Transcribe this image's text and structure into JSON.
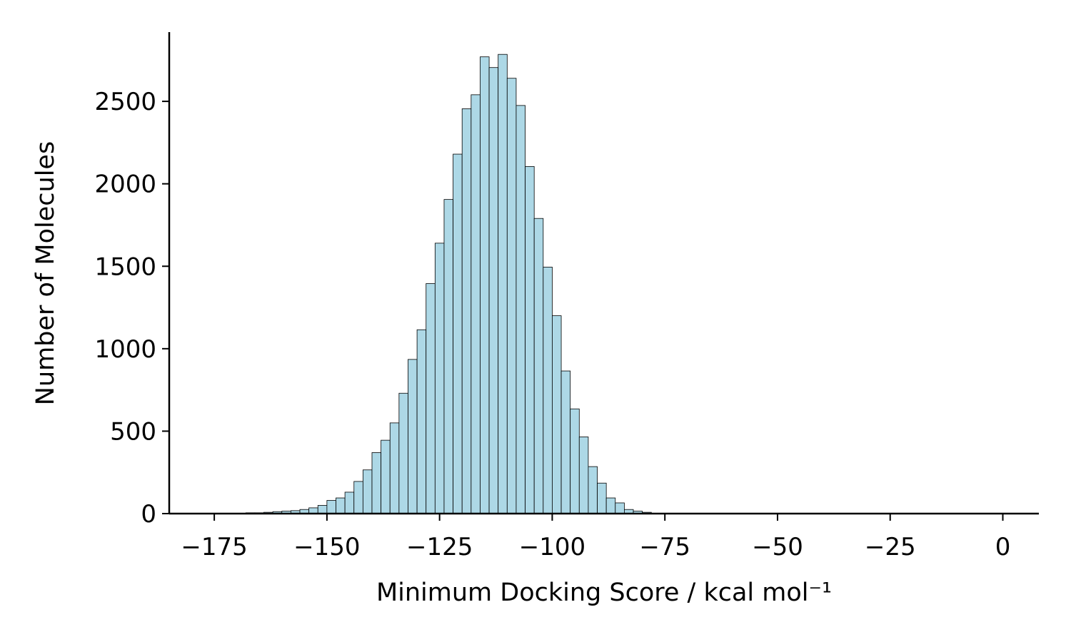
{
  "chart_data": {
    "type": "bar",
    "title": "",
    "xlabel": "Minimum Docking Score / kcal mol⁻¹",
    "ylabel": "Number of Molecules",
    "xlim": [
      -185,
      8
    ],
    "ylim": [
      0,
      2920
    ],
    "xticks": [
      -175,
      -150,
      -125,
      -100,
      -75,
      -50,
      -25,
      0
    ],
    "xtick_labels": [
      "−175",
      "−150",
      "−125",
      "−100",
      "−75",
      "−50",
      "−25",
      "0"
    ],
    "yticks": [
      0,
      500,
      1000,
      1500,
      2000,
      2500
    ],
    "ytick_labels": [
      "0",
      "500",
      "1000",
      "1500",
      "2000",
      "2500"
    ],
    "bin_start": -168,
    "bin_width": 2,
    "values": [
      5,
      5,
      8,
      12,
      15,
      18,
      25,
      35,
      50,
      80,
      95,
      130,
      195,
      265,
      370,
      445,
      550,
      730,
      935,
      1115,
      1395,
      1640,
      1905,
      2180,
      2455,
      2540,
      2770,
      2705,
      2785,
      2640,
      2475,
      2105,
      1790,
      1495,
      1200,
      865,
      635,
      465,
      285,
      185,
      95,
      65,
      25,
      15,
      8
    ],
    "bar_color": "#add8e6",
    "grid": false,
    "legend": false
  }
}
